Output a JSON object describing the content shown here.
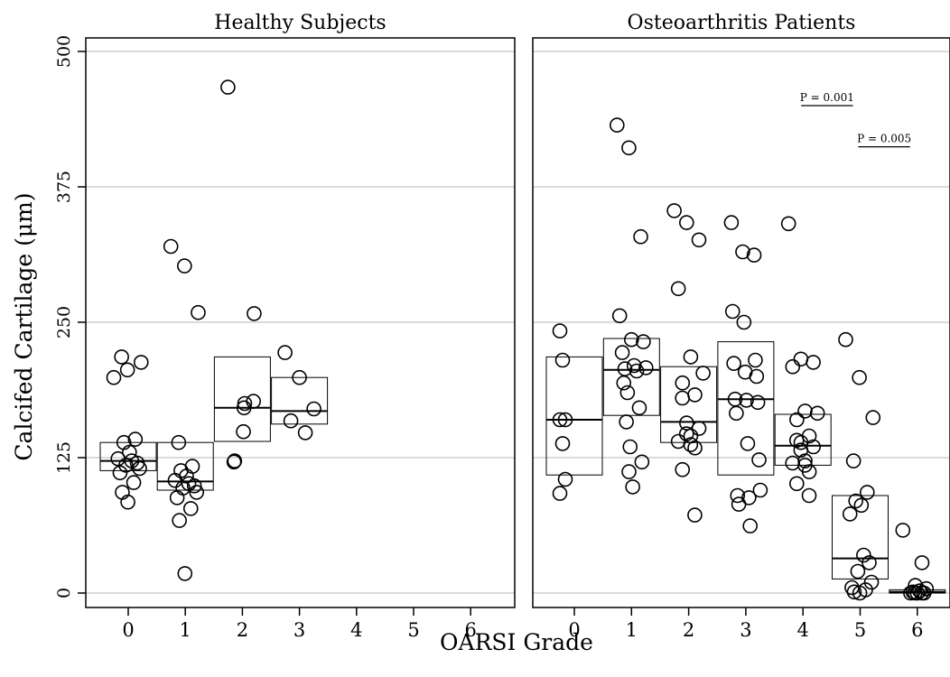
{
  "chart_data": {
    "type": "scatter",
    "ylabel": "Calcifed Cartilage (μm)",
    "xlabel": "OARSI Grade",
    "ylim": [
      0,
      500
    ],
    "yticks": [
      0,
      125,
      250,
      375,
      500
    ],
    "xticks": [
      0,
      1,
      2,
      3,
      4,
      5,
      6
    ],
    "grid": "horizontal",
    "panels": [
      {
        "title": "Healthy Subjects",
        "boxes": [
          {
            "grade": 0,
            "q1": 113,
            "median": 122,
            "q3": 139
          },
          {
            "grade": 1,
            "q1": 95,
            "median": 103,
            "q3": 139
          },
          {
            "grade": 2,
            "q1": 140,
            "median": 171,
            "q3": 218
          },
          {
            "grade": 3,
            "q1": 156,
            "median": 168,
            "q3": 199
          }
        ],
        "points": [
          {
            "grade": 0,
            "values": [
              199,
              206,
              213,
              218,
              142,
              139,
              130,
              124,
              122,
              120,
              118,
              115,
              111,
              102,
              93,
              84
            ]
          },
          {
            "grade": 1,
            "values": [
              320,
              302,
              259,
              139,
              117,
              113,
              108,
              104,
              101,
              99,
              97,
              93,
              88,
              78,
              67,
              18
            ]
          },
          {
            "grade": 2,
            "values": [
              467,
              258,
              177,
              175,
              171,
              149,
              122,
              121
            ]
          },
          {
            "grade": 3,
            "values": [
              222,
              199,
              170,
              159,
              148
            ]
          }
        ]
      },
      {
        "title": "Osteoarthritis Patients",
        "boxes": [
          {
            "grade": 0,
            "q1": 109,
            "median": 160,
            "q3": 218
          },
          {
            "grade": 1,
            "q1": 164,
            "median": 206,
            "q3": 235
          },
          {
            "grade": 2,
            "q1": 139,
            "median": 158,
            "q3": 209
          },
          {
            "grade": 3,
            "q1": 109,
            "median": 179,
            "q3": 232
          },
          {
            "grade": 4,
            "q1": 118,
            "median": 136,
            "q3": 165
          },
          {
            "grade": 5,
            "q1": 13,
            "median": 32,
            "q3": 90
          },
          {
            "grade": 6,
            "q1": 0,
            "median": 1,
            "q3": 3
          }
        ],
        "points": [
          {
            "grade": 0,
            "values": [
              242,
              215,
              160,
              160,
              138,
              105,
              92
            ]
          },
          {
            "grade": 1,
            "values": [
              432,
              411,
              329,
              256,
              234,
              232,
              222,
              210,
              208,
              207,
              205,
              194,
              185,
              171,
              158,
              135,
              121,
              112,
              98
            ]
          },
          {
            "grade": 2,
            "values": [
              353,
              342,
              326,
              281,
              218,
              203,
              194,
              183,
              180,
              157,
              152,
              147,
              145,
              140,
              137,
              134,
              114,
              72
            ]
          },
          {
            "grade": 3,
            "values": [
              342,
              315,
              312,
              260,
              250,
              215,
              212,
              204,
              200,
              179,
              178,
              176,
              166,
              138,
              123,
              90,
              88,
              95,
              82,
              62
            ]
          },
          {
            "grade": 4,
            "values": [
              341,
              216,
              213,
              209,
              168,
              166,
              160,
              145,
              141,
              139,
              135,
              132,
              122,
              120,
              118,
              112,
              101,
              90
            ]
          },
          {
            "grade": 5,
            "values": [
              234,
              199,
              162,
              122,
              93,
              85,
              81,
              73,
              35,
              28,
              20,
              10,
              5,
              3,
              1,
              0
            ]
          },
          {
            "grade": 6,
            "values": [
              58,
              28,
              7,
              4,
              2,
              1,
              0,
              0,
              0,
              0,
              0
            ]
          }
        ],
        "annotations": [
          {
            "label": "P = 0.001",
            "from_grade": 4,
            "to_grade": 5,
            "y": 450
          },
          {
            "label": "P = 0.005",
            "from_grade": 5,
            "to_grade": 6,
            "y": 412
          }
        ]
      }
    ]
  }
}
